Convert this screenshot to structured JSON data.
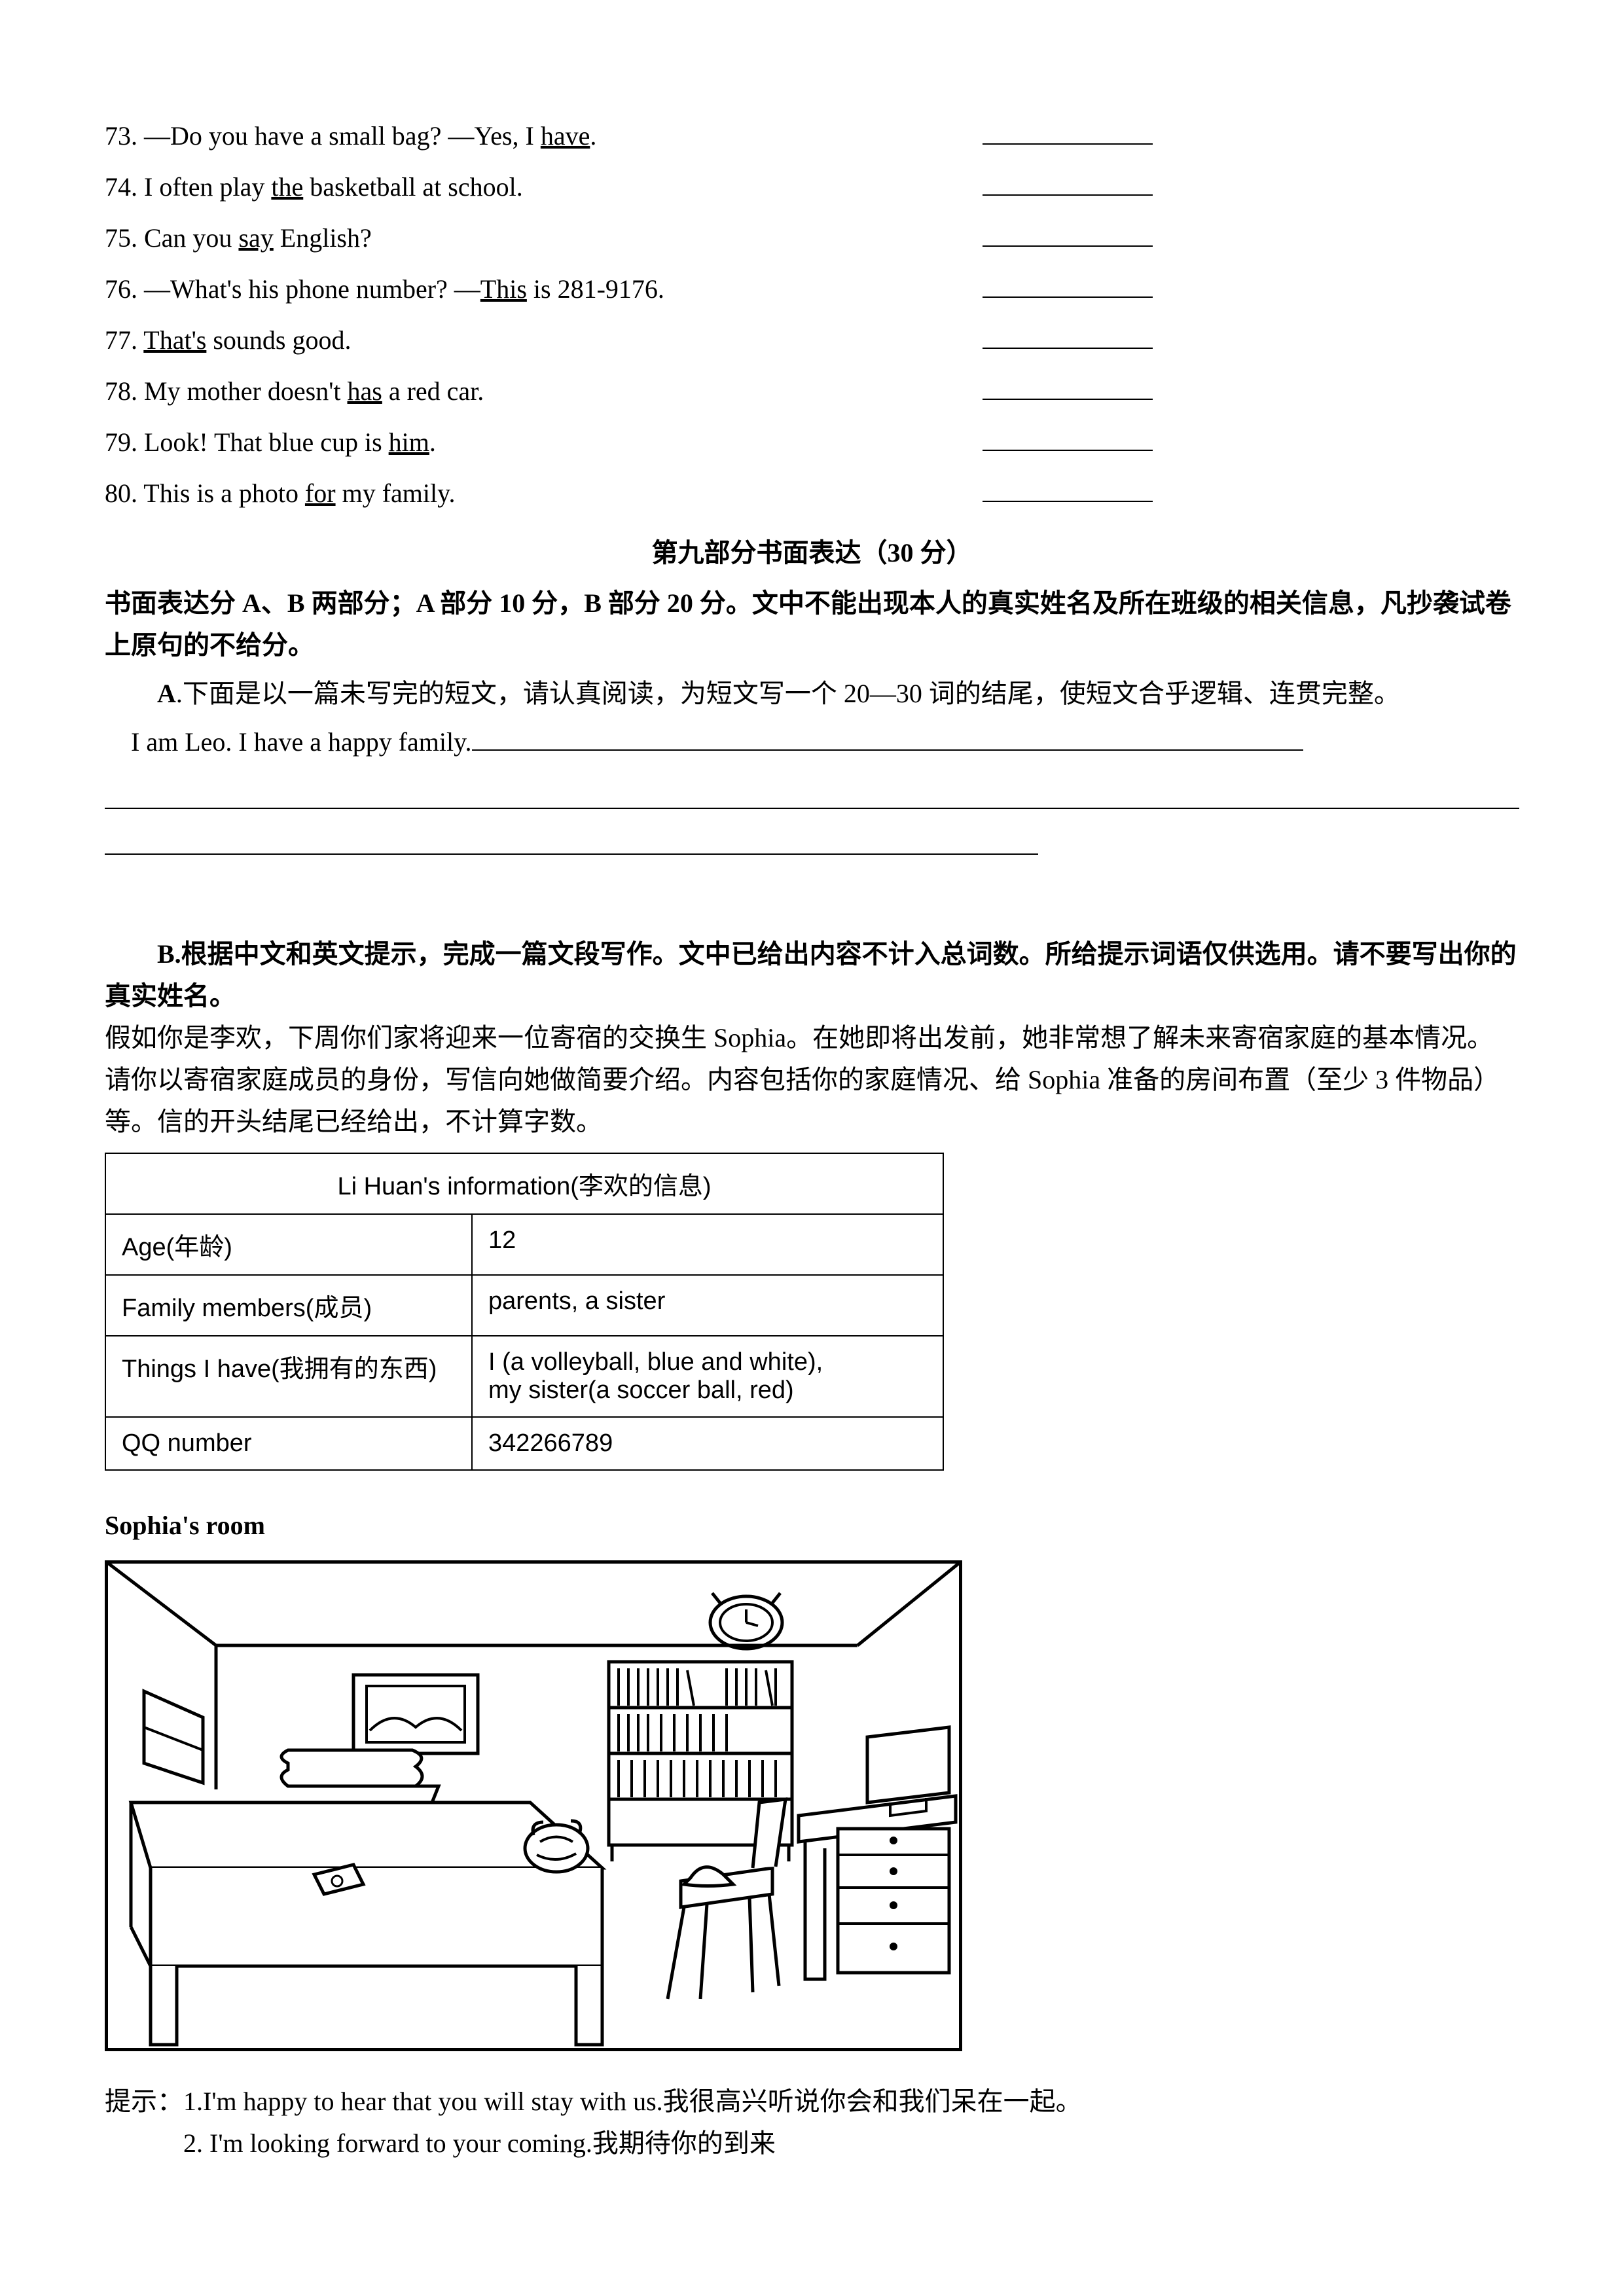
{
  "questions": [
    {
      "num": "73",
      "pre": ". —Do you have a small bag? —Yes, I ",
      "ul": "have",
      "post": "."
    },
    {
      "num": "74",
      "pre": ". I often play ",
      "ul": "the",
      "post": " basketball at school."
    },
    {
      "num": "75",
      "pre": ". Can you ",
      "ul": "say",
      "post": " English?"
    },
    {
      "num": "76",
      "pre": ". —What's his phone number? —",
      "ul": "This",
      "post": " is 281-9176."
    },
    {
      "num": "77",
      "pre": ". ",
      "ul": "That's",
      "post": " sounds good."
    },
    {
      "num": "78",
      "pre": ". My mother doesn't ",
      "ul": "has",
      "post": " a red car."
    },
    {
      "num": "79",
      "pre": ". Look! That blue cup is ",
      "ul": "him",
      "post": "."
    },
    {
      "num": "80",
      "pre": ". This is a photo ",
      "ul": "for",
      "post": " my family."
    }
  ],
  "section9_title": "第九部分书面表达（30 分）",
  "intro_bold": "书面表达分 A、B 两部分；A 部分 10 分，B 部分 20 分。文中不能出现本人的真实姓名及所在班级的相关信息，凡抄袭试卷上原句的不给分。",
  "partA_label": "A",
  "partA_instruction": ".下面是以一篇未写完的短文，请认真阅读，为短文写一个 20—30 词的结尾，使短文合乎逻辑、连贯完整。",
  "partA_start_text": "I am Leo. I have a happy family.",
  "partB_heading": "B.根据中文和英文提示，完成一篇文段写作。文中已给出内容不计入总词数。所给提示词语仅供选用。请不要写出你的真实姓名。",
  "partB_body": "假如你是李欢，下周你们家将迎来一位寄宿的交换生 Sophia。在她即将出发前，她非常想了解未来寄宿家庭的基本情况。请你以寄宿家庭成员的身份，写信向她做简要介绍。内容包括你的家庭情况、给 Sophia 准备的房间布置（至少 3 件物品）等。信的开头结尾已经给出，不计算字数。",
  "table_title": "Li Huan's information(李欢的信息)",
  "table_rows": [
    {
      "label": "Age(年龄)",
      "value": "12"
    },
    {
      "label": "Family members(成员)",
      "value": "parents, a sister"
    },
    {
      "label": "Things I have(我拥有的东西)",
      "value": "I (a volleyball, blue and white),\nmy sister(a soccer ball, red)"
    },
    {
      "label": "QQ number",
      "value": "342266789"
    }
  ],
  "sophias_room_label": "Sophia's room",
  "hint_prefix": "提示：",
  "hint1": "1.I'm happy to hear that you will stay with us.我很高兴听说你会和我们呆在一起。",
  "hint2": "2. I'm looking forward to your coming.我期待你的到来"
}
